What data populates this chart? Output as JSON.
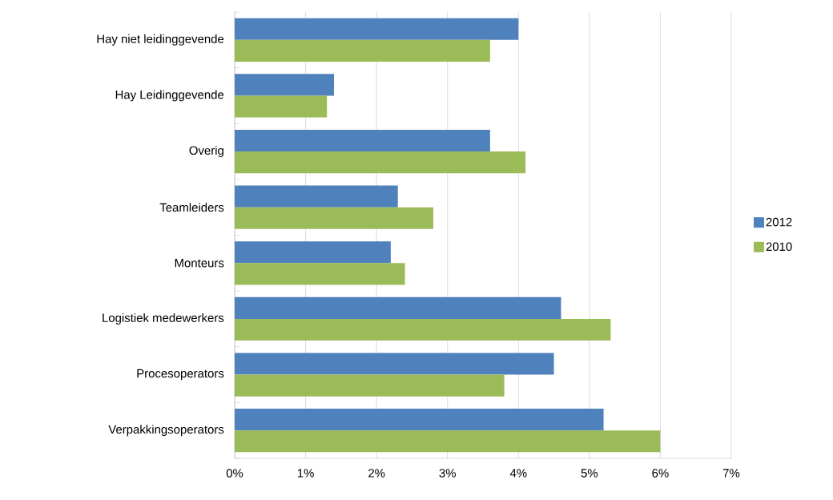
{
  "chart_data": {
    "type": "bar",
    "orientation": "horizontal",
    "categories": [
      "Hay niet leidinggevende",
      "Hay Leidinggevende",
      "Overig",
      "Teamleiders",
      "Monteurs",
      "Logistiek medewerkers",
      "Procesoperators",
      "Verpakkingsoperators"
    ],
    "series": [
      {
        "name": "2012",
        "color": "#4f81bd",
        "values": [
          4.0,
          1.4,
          3.6,
          2.3,
          2.2,
          4.6,
          4.5,
          5.2
        ]
      },
      {
        "name": "2010",
        "color": "#9bbb59",
        "values": [
          3.6,
          1.3,
          4.1,
          2.8,
          2.4,
          5.3,
          3.8,
          6.0
        ]
      }
    ],
    "xlim": [
      0,
      7
    ],
    "xticks": [
      {
        "value": 0,
        "label": "0%"
      },
      {
        "value": 1,
        "label": "1%"
      },
      {
        "value": 2,
        "label": "2%"
      },
      {
        "value": 3,
        "label": "3%"
      },
      {
        "value": 4,
        "label": "4%"
      },
      {
        "value": 5,
        "label": "5%"
      },
      {
        "value": 6,
        "label": "6%"
      },
      {
        "value": 7,
        "label": "7%"
      }
    ],
    "grid": "x",
    "legend": "right"
  }
}
